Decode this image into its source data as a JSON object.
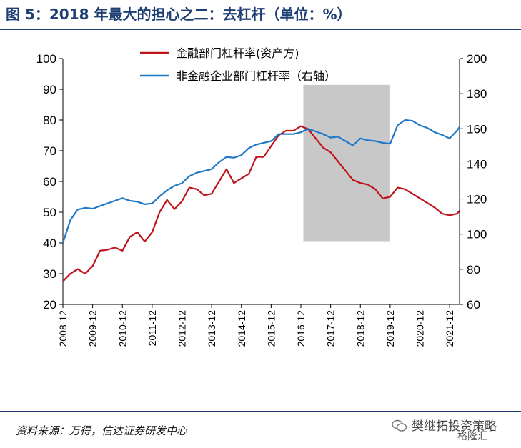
{
  "page": {
    "title": "图 5：2018 年最大的担心之二：去杠杆（单位：%）",
    "source": "资料来源：万得，信达证券研发中心",
    "watermark": "樊继拓投资策略",
    "watermark_sub": "格隆汇"
  },
  "colors": {
    "series_red": "#c0141c",
    "series_blue": "#1f78c8",
    "shade": "#c8c8c8",
    "frame": "#1f3f73"
  },
  "chart_data": {
    "type": "line",
    "x_ticks": [
      "2008-12",
      "2009-12",
      "2010-12",
      "2011-12",
      "2012-12",
      "2013-12",
      "2014-12",
      "2015-12",
      "2016-12",
      "2017-12",
      "2018-12",
      "2019-12",
      "2020-12",
      "2021-12"
    ],
    "x_start": "2008-12",
    "x_end": "2022-04",
    "ylim_left": [
      20,
      100
    ],
    "yticks_left": [
      20,
      30,
      40,
      50,
      60,
      70,
      80,
      90,
      100
    ],
    "ylim_right": [
      60,
      200
    ],
    "yticks_right": [
      60,
      80,
      100,
      120,
      140,
      160,
      180,
      200
    ],
    "shaded_region": {
      "from": "2017-01",
      "to": "2019-12"
    },
    "legend_position": "top-center",
    "series": [
      {
        "name": "金融部门杠杆率(资产方)",
        "axis": "left",
        "points": [
          [
            "2008-12",
            27.5
          ],
          [
            "2009-03",
            30.0
          ],
          [
            "2009-06",
            31.5
          ],
          [
            "2009-09",
            30.0
          ],
          [
            "2009-12",
            32.5
          ],
          [
            "2010-03",
            37.5
          ],
          [
            "2010-06",
            37.8
          ],
          [
            "2010-09",
            38.5
          ],
          [
            "2010-12",
            37.5
          ],
          [
            "2011-03",
            42.0
          ],
          [
            "2011-06",
            43.5
          ],
          [
            "2011-09",
            40.5
          ],
          [
            "2011-12",
            43.5
          ],
          [
            "2012-03",
            50.0
          ],
          [
            "2012-06",
            54.0
          ],
          [
            "2012-09",
            51.0
          ],
          [
            "2012-12",
            53.5
          ],
          [
            "2013-03",
            58.0
          ],
          [
            "2013-06",
            57.5
          ],
          [
            "2013-09",
            55.5
          ],
          [
            "2013-12",
            56.0
          ],
          [
            "2014-03",
            60.0
          ],
          [
            "2014-06",
            64.0
          ],
          [
            "2014-09",
            59.5
          ],
          [
            "2014-12",
            61.0
          ],
          [
            "2015-03",
            62.5
          ],
          [
            "2015-06",
            68.0
          ],
          [
            "2015-09",
            68.0
          ],
          [
            "2015-12",
            71.5
          ],
          [
            "2016-03",
            75.0
          ],
          [
            "2016-06",
            76.5
          ],
          [
            "2016-09",
            76.5
          ],
          [
            "2016-12",
            78.0
          ],
          [
            "2017-03",
            77.0
          ],
          [
            "2017-06",
            74.0
          ],
          [
            "2017-09",
            71.0
          ],
          [
            "2017-12",
            69.5
          ],
          [
            "2018-03",
            66.5
          ],
          [
            "2018-06",
            63.5
          ],
          [
            "2018-09",
            60.5
          ],
          [
            "2018-12",
            59.5
          ],
          [
            "2019-03",
            59.0
          ],
          [
            "2019-06",
            57.5
          ],
          [
            "2019-09",
            54.5
          ],
          [
            "2019-12",
            55.0
          ],
          [
            "2020-03",
            58.0
          ],
          [
            "2020-06",
            57.5
          ],
          [
            "2020-09",
            56.0
          ],
          [
            "2020-12",
            54.5
          ],
          [
            "2021-03",
            53.0
          ],
          [
            "2021-06",
            51.5
          ],
          [
            "2021-09",
            49.5
          ],
          [
            "2021-12",
            49.0
          ],
          [
            "2022-03",
            49.5
          ],
          [
            "2022-04",
            50.5
          ]
        ]
      },
      {
        "name": "非金融企业部门杠杆率（右轴）",
        "axis": "right",
        "points": [
          [
            "2008-12",
            95
          ],
          [
            "2009-03",
            108
          ],
          [
            "2009-06",
            114
          ],
          [
            "2009-09",
            115
          ],
          [
            "2009-12",
            114.5
          ],
          [
            "2010-03",
            116
          ],
          [
            "2010-06",
            117.5
          ],
          [
            "2010-09",
            119
          ],
          [
            "2010-12",
            120.5
          ],
          [
            "2011-03",
            119
          ],
          [
            "2011-06",
            118.5
          ],
          [
            "2011-09",
            117
          ],
          [
            "2011-12",
            117.5
          ],
          [
            "2012-03",
            121.5
          ],
          [
            "2012-06",
            125
          ],
          [
            "2012-09",
            127.5
          ],
          [
            "2012-12",
            129
          ],
          [
            "2013-03",
            133
          ],
          [
            "2013-06",
            135
          ],
          [
            "2013-09",
            136
          ],
          [
            "2013-12",
            137
          ],
          [
            "2014-03",
            141
          ],
          [
            "2014-06",
            144
          ],
          [
            "2014-09",
            143.5
          ],
          [
            "2014-12",
            145
          ],
          [
            "2015-03",
            149
          ],
          [
            "2015-06",
            151
          ],
          [
            "2015-09",
            152
          ],
          [
            "2015-12",
            153
          ],
          [
            "2016-03",
            157
          ],
          [
            "2016-06",
            157
          ],
          [
            "2016-09",
            157
          ],
          [
            "2016-12",
            158
          ],
          [
            "2017-03",
            160
          ],
          [
            "2017-06",
            158.5
          ],
          [
            "2017-09",
            157
          ],
          [
            "2017-12",
            155
          ],
          [
            "2018-03",
            155.5
          ],
          [
            "2018-06",
            153
          ],
          [
            "2018-09",
            150.5
          ],
          [
            "2018-12",
            154.5
          ],
          [
            "2019-03",
            153.5
          ],
          [
            "2019-06",
            153
          ],
          [
            "2019-09",
            152
          ],
          [
            "2019-12",
            151.5
          ],
          [
            "2020-03",
            162
          ],
          [
            "2020-06",
            165
          ],
          [
            "2020-09",
            164.5
          ],
          [
            "2020-12",
            162
          ],
          [
            "2021-03",
            160.5
          ],
          [
            "2021-06",
            158
          ],
          [
            "2021-09",
            156.5
          ],
          [
            "2021-12",
            154.5
          ],
          [
            "2022-03",
            159
          ],
          [
            "2022-04",
            161
          ]
        ]
      }
    ]
  }
}
